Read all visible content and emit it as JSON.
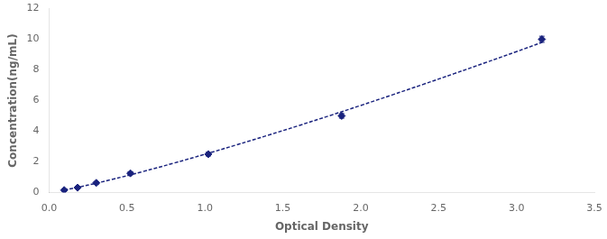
{
  "chart_data": {
    "type": "scatter",
    "xlabel": "Optical Density",
    "ylabel": "Concentration(ng/mL)",
    "xlim": [
      0,
      3.5
    ],
    "ylim": [
      0,
      12
    ],
    "xticks": [
      {
        "value": 0,
        "label": "0.0"
      },
      0.5,
      {
        "value": 1,
        "label": "1.0"
      },
      1.5,
      {
        "value": 2,
        "label": "2.0"
      },
      2.5,
      {
        "value": 3,
        "label": "3.0"
      },
      3.5
    ],
    "yticks": [
      0,
      2,
      4,
      6,
      8,
      10,
      12
    ],
    "grid": false,
    "series": [
      {
        "type": "line",
        "color": "#1a237e",
        "line_style": "dashed",
        "x": [
          0.097,
          0.2,
          0.4,
          0.6,
          0.8,
          1.0,
          1.2,
          1.4,
          1.6,
          1.8,
          2.0,
          2.2,
          2.4,
          2.6,
          2.8,
          3.0,
          3.163
        ],
        "values": [
          0.156,
          0.369,
          0.84,
          1.359,
          1.913,
          2.494,
          3.096,
          3.719,
          4.358,
          5.012,
          5.681,
          6.362,
          7.054,
          7.758,
          8.472,
          9.196,
          9.792
        ]
      },
      {
        "type": "scatter",
        "color": "#1a237e",
        "marker": "diamond",
        "x": [
          0.097,
          0.183,
          0.303,
          0.522,
          1.022,
          1.878,
          3.163
        ],
        "values": [
          0.156,
          0.312,
          0.625,
          1.25,
          2.5,
          5.0,
          10.0
        ],
        "errors": [
          0.08,
          0.08,
          0.08,
          0.1,
          0.12,
          0.15,
          0.2
        ]
      }
    ]
  }
}
